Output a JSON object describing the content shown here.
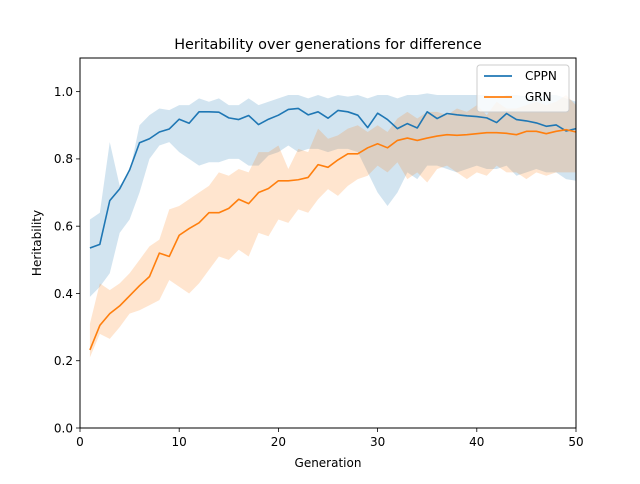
{
  "chart_data": {
    "type": "line",
    "title": "Heritability over generations for difference",
    "xlabel": "Generation",
    "ylabel": "Heritability",
    "xlim": [
      0,
      50
    ],
    "ylim": [
      0,
      1.1
    ],
    "xticks": [
      0,
      10,
      20,
      30,
      40,
      50
    ],
    "xtick_labels": [
      "0",
      "10",
      "20",
      "30",
      "40",
      "50"
    ],
    "yticks": [
      0.0,
      0.2,
      0.4,
      0.6,
      0.8,
      1.0
    ],
    "ytick_labels": [
      "0.0",
      "0.2",
      "0.4",
      "0.6",
      "0.8",
      "1.0"
    ],
    "grid": false,
    "legend_position": "top-right",
    "x": [
      1,
      2,
      3,
      4,
      5,
      6,
      7,
      8,
      9,
      10,
      11,
      12,
      13,
      14,
      15,
      16,
      17,
      18,
      19,
      20,
      21,
      22,
      23,
      24,
      25,
      26,
      27,
      28,
      29,
      30,
      31,
      32,
      33,
      34,
      35,
      36,
      37,
      38,
      39,
      40,
      41,
      42,
      43,
      44,
      45,
      46,
      47,
      48,
      49,
      50
    ],
    "series": [
      {
        "name": "CPPN",
        "color": "#1f77b4",
        "band_color": "#1f77b4",
        "values": [
          0.535,
          0.546,
          0.676,
          0.711,
          0.767,
          0.848,
          0.86,
          0.88,
          0.889,
          0.918,
          0.906,
          0.94,
          0.94,
          0.939,
          0.922,
          0.917,
          0.929,
          0.902,
          0.918,
          0.93,
          0.947,
          0.95,
          0.931,
          0.94,
          0.921,
          0.944,
          0.94,
          0.93,
          0.893,
          0.936,
          0.917,
          0.89,
          0.905,
          0.892,
          0.94,
          0.92,
          0.935,
          0.931,
          0.928,
          0.926,
          0.922,
          0.908,
          0.935,
          0.917,
          0.913,
          0.907,
          0.897,
          0.901,
          0.883,
          0.89
        ],
        "lower": [
          0.39,
          0.42,
          0.46,
          0.58,
          0.62,
          0.7,
          0.8,
          0.84,
          0.85,
          0.82,
          0.8,
          0.78,
          0.79,
          0.79,
          0.8,
          0.8,
          0.78,
          0.78,
          0.81,
          0.82,
          0.84,
          0.82,
          0.83,
          0.83,
          0.82,
          0.83,
          0.83,
          0.82,
          0.76,
          0.7,
          0.66,
          0.7,
          0.76,
          0.74,
          0.78,
          0.78,
          0.77,
          0.76,
          0.77,
          0.78,
          0.77,
          0.77,
          0.78,
          0.75,
          0.76,
          0.77,
          0.76,
          0.76,
          0.74,
          0.735
        ],
        "upper": [
          0.62,
          0.64,
          0.85,
          0.72,
          0.76,
          0.9,
          0.93,
          0.95,
          0.945,
          0.96,
          0.96,
          0.98,
          0.97,
          0.98,
          0.96,
          0.96,
          0.98,
          0.96,
          0.97,
          0.98,
          0.99,
          0.99,
          0.98,
          0.99,
          0.98,
          0.99,
          0.985,
          0.99,
          0.98,
          0.99,
          0.99,
          0.98,
          0.99,
          0.99,
          0.995,
          0.99,
          0.99,
          0.99,
          0.99,
          0.99,
          0.99,
          0.98,
          0.99,
          0.99,
          0.985,
          0.98,
          0.99,
          0.99,
          0.98,
          0.97
        ]
      },
      {
        "name": "GRN",
        "color": "#ff7f0e",
        "band_color": "#ff7f0e",
        "values": [
          0.232,
          0.305,
          0.34,
          0.363,
          0.393,
          0.423,
          0.45,
          0.52,
          0.51,
          0.573,
          0.593,
          0.61,
          0.64,
          0.64,
          0.653,
          0.68,
          0.667,
          0.7,
          0.712,
          0.735,
          0.735,
          0.738,
          0.745,
          0.783,
          0.775,
          0.797,
          0.815,
          0.815,
          0.833,
          0.845,
          0.833,
          0.855,
          0.862,
          0.855,
          0.862,
          0.868,
          0.872,
          0.87,
          0.872,
          0.875,
          0.878,
          0.878,
          0.876,
          0.872,
          0.882,
          0.882,
          0.875,
          0.882,
          0.887,
          0.88
        ],
        "lower": [
          0.21,
          0.28,
          0.265,
          0.3,
          0.34,
          0.35,
          0.365,
          0.38,
          0.44,
          0.42,
          0.4,
          0.43,
          0.47,
          0.51,
          0.5,
          0.53,
          0.51,
          0.58,
          0.57,
          0.62,
          0.61,
          0.65,
          0.64,
          0.68,
          0.71,
          0.69,
          0.72,
          0.74,
          0.75,
          0.78,
          0.76,
          0.79,
          0.74,
          0.76,
          0.73,
          0.77,
          0.78,
          0.76,
          0.74,
          0.76,
          0.75,
          0.78,
          0.76,
          0.76,
          0.74,
          0.76,
          0.75,
          0.76,
          0.76,
          0.76
        ],
        "upper": [
          0.31,
          0.43,
          0.41,
          0.43,
          0.46,
          0.5,
          0.54,
          0.56,
          0.65,
          0.66,
          0.68,
          0.7,
          0.72,
          0.76,
          0.75,
          0.77,
          0.76,
          0.82,
          0.82,
          0.84,
          0.77,
          0.83,
          0.82,
          0.89,
          0.86,
          0.87,
          0.89,
          0.9,
          0.88,
          0.9,
          0.88,
          0.92,
          0.94,
          0.92,
          0.94,
          0.94,
          0.93,
          0.95,
          0.94,
          0.96,
          0.93,
          0.97,
          0.95,
          0.95,
          0.96,
          0.97,
          0.96,
          0.97,
          0.99,
          0.96
        ]
      }
    ]
  }
}
